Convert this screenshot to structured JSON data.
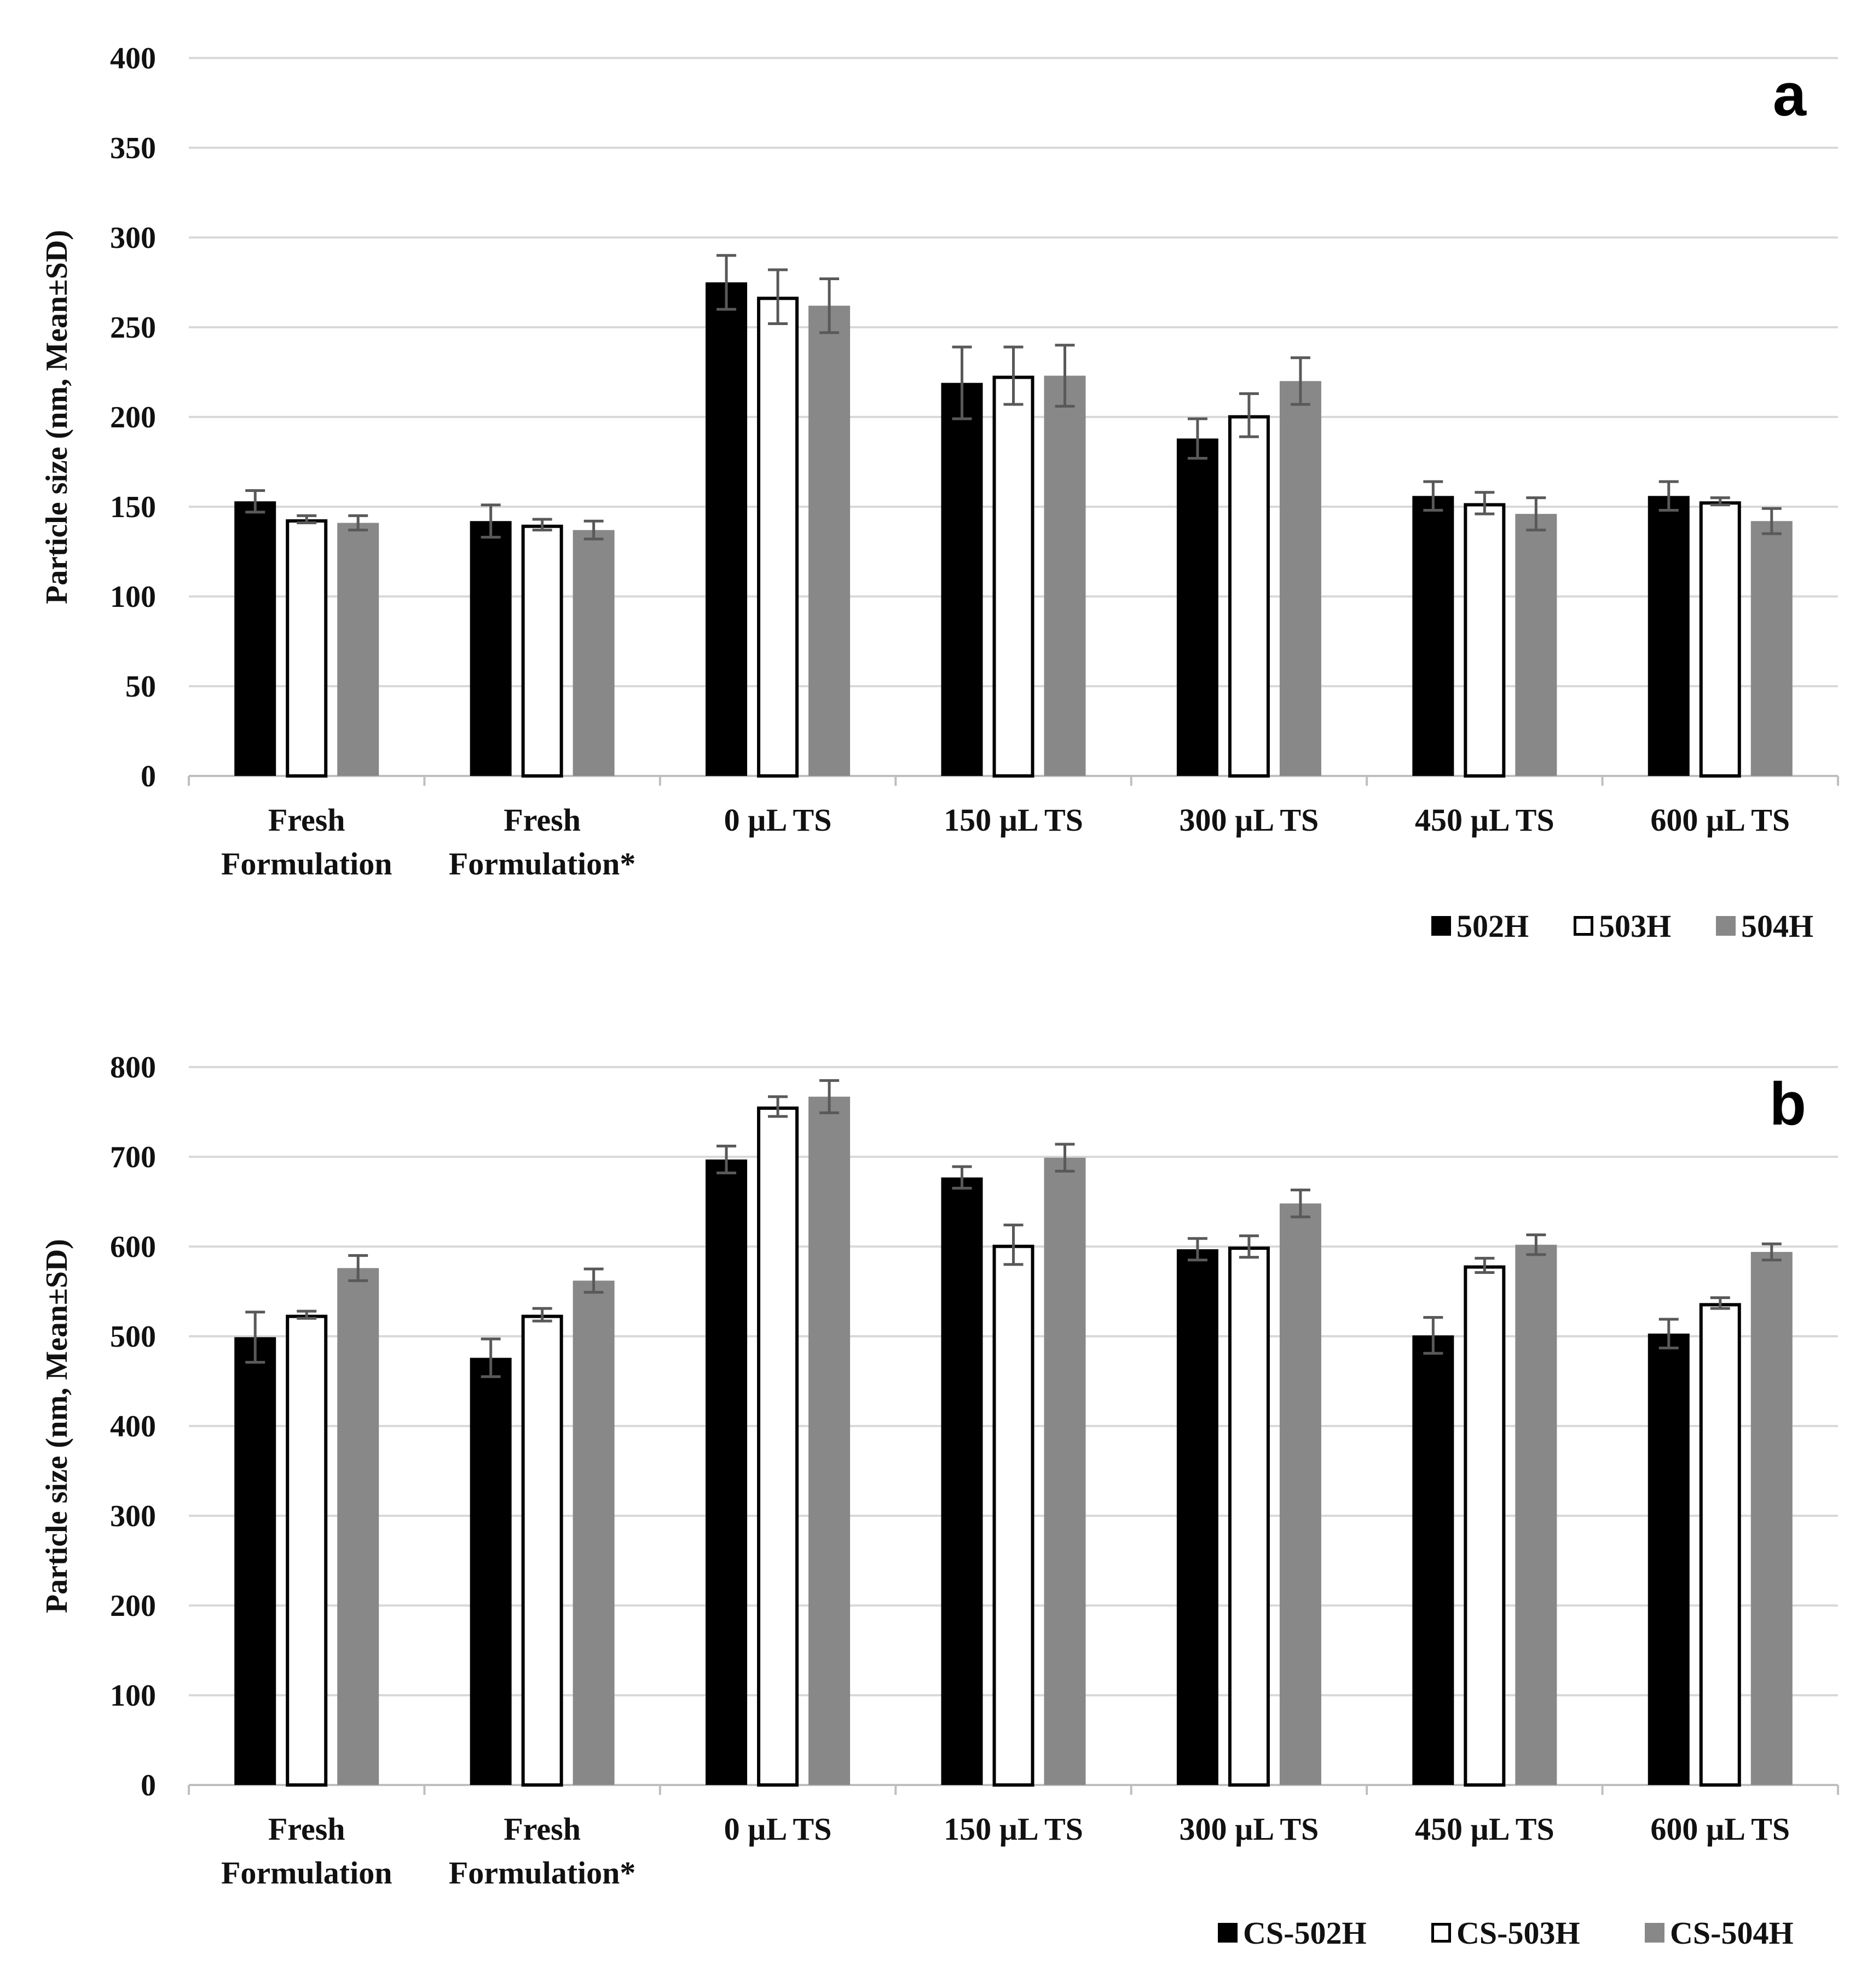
{
  "chart_data": [
    {
      "id": "a",
      "type": "bar",
      "panel_label": "a",
      "ylabel": "Particle size (nm, Mean±SD)",
      "ylim": [
        0,
        400
      ],
      "yticks": [
        0,
        50,
        100,
        150,
        200,
        250,
        300,
        350,
        400
      ],
      "grid": true,
      "legend_position": "bottom-right",
      "categories": [
        [
          "Fresh",
          "Formulation"
        ],
        [
          "Fresh",
          "Formulation*"
        ],
        [
          "0 µL TS"
        ],
        [
          "150 µL TS"
        ],
        [
          "300 µL TS"
        ],
        [
          "450 µL TS"
        ],
        [
          "600 µL TS"
        ]
      ],
      "series": [
        {
          "name": "502H",
          "color": "#000000",
          "values": [
            153,
            142,
            275,
            219,
            188,
            156,
            156
          ],
          "errors": [
            6,
            9,
            15,
            20,
            11,
            8,
            8
          ]
        },
        {
          "name": "503H",
          "color": "#ffffff",
          "values": [
            143,
            140,
            267,
            223,
            201,
            152,
            153
          ],
          "errors": [
            2,
            3,
            15,
            16,
            12,
            6,
            2
          ]
        },
        {
          "name": "504H",
          "color": "#888888",
          "values": [
            141,
            137,
            262,
            223,
            220,
            146,
            142
          ],
          "errors": [
            4,
            5,
            15,
            17,
            13,
            9,
            7
          ]
        }
      ]
    },
    {
      "id": "b",
      "type": "bar",
      "panel_label": "b",
      "ylabel": "Particle size (nm, Mean±SD)",
      "ylim": [
        0,
        800
      ],
      "yticks": [
        0,
        100,
        200,
        300,
        400,
        500,
        600,
        700,
        800
      ],
      "grid": true,
      "legend_position": "bottom-right",
      "categories": [
        [
          "Fresh",
          "Formulation"
        ],
        [
          "Fresh",
          "Formulation*"
        ],
        [
          "0 µL TS"
        ],
        [
          "150 µL TS"
        ],
        [
          "300 µL TS"
        ],
        [
          "450 µL TS"
        ],
        [
          "600 µL TS"
        ]
      ],
      "series": [
        {
          "name": "CS-502H",
          "color": "#000000",
          "values": [
            499,
            476,
            697,
            677,
            597,
            501,
            503
          ],
          "errors": [
            28,
            21,
            15,
            12,
            12,
            20,
            16
          ]
        },
        {
          "name": "CS-503H",
          "color": "#ffffff",
          "values": [
            524,
            524,
            756,
            602,
            600,
            579,
            537
          ],
          "errors": [
            4,
            7,
            11,
            22,
            12,
            8,
            6
          ]
        },
        {
          "name": "CS-504H",
          "color": "#888888",
          "values": [
            576,
            562,
            767,
            699,
            648,
            602,
            594
          ],
          "errors": [
            14,
            13,
            18,
            15,
            15,
            11,
            9
          ]
        }
      ]
    }
  ]
}
